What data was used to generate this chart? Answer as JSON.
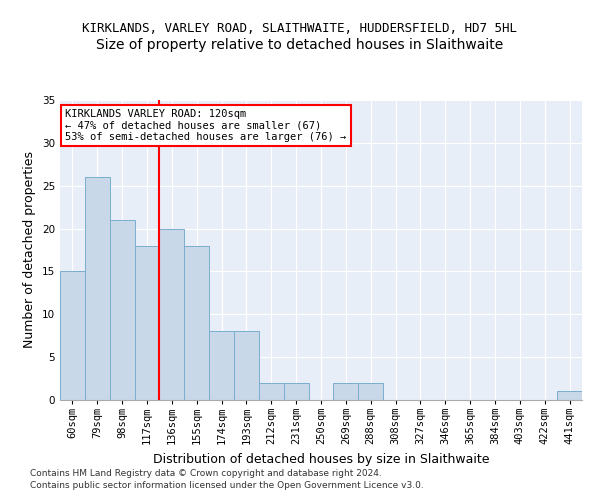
{
  "title": "KIRKLANDS, VARLEY ROAD, SLAITHWAITE, HUDDERSFIELD, HD7 5HL",
  "subtitle": "Size of property relative to detached houses in Slaithwaite",
  "xlabel": "Distribution of detached houses by size in Slaithwaite",
  "ylabel": "Number of detached properties",
  "categories": [
    "60sqm",
    "79sqm",
    "98sqm",
    "117sqm",
    "136sqm",
    "155sqm",
    "174sqm",
    "193sqm",
    "212sqm",
    "231sqm",
    "250sqm",
    "269sqm",
    "288sqm",
    "308sqm",
    "327sqm",
    "346sqm",
    "365sqm",
    "384sqm",
    "403sqm",
    "422sqm",
    "441sqm"
  ],
  "values": [
    15,
    26,
    21,
    18,
    20,
    18,
    8,
    8,
    2,
    2,
    0,
    2,
    2,
    0,
    0,
    0,
    0,
    0,
    0,
    0,
    1
  ],
  "bar_color": "#c8d8e8",
  "bar_edge_color": "#7aadd0",
  "red_line_x": 3.5,
  "annotation_line1": "KIRKLANDS VARLEY ROAD: 120sqm",
  "annotation_line2": "← 47% of detached houses are smaller (67)",
  "annotation_line3": "53% of semi-detached houses are larger (76) →",
  "ylim": [
    0,
    35
  ],
  "yticks": [
    0,
    5,
    10,
    15,
    20,
    25,
    30,
    35
  ],
  "footer1": "Contains HM Land Registry data © Crown copyright and database right 2024.",
  "footer2": "Contains public sector information licensed under the Open Government Licence v3.0.",
  "plot_bg_color": "#e8eef7",
  "title_fontsize": 9,
  "subtitle_fontsize": 10,
  "xlabel_fontsize": 9,
  "ylabel_fontsize": 9,
  "tick_fontsize": 7.5,
  "footer_fontsize": 6.5
}
